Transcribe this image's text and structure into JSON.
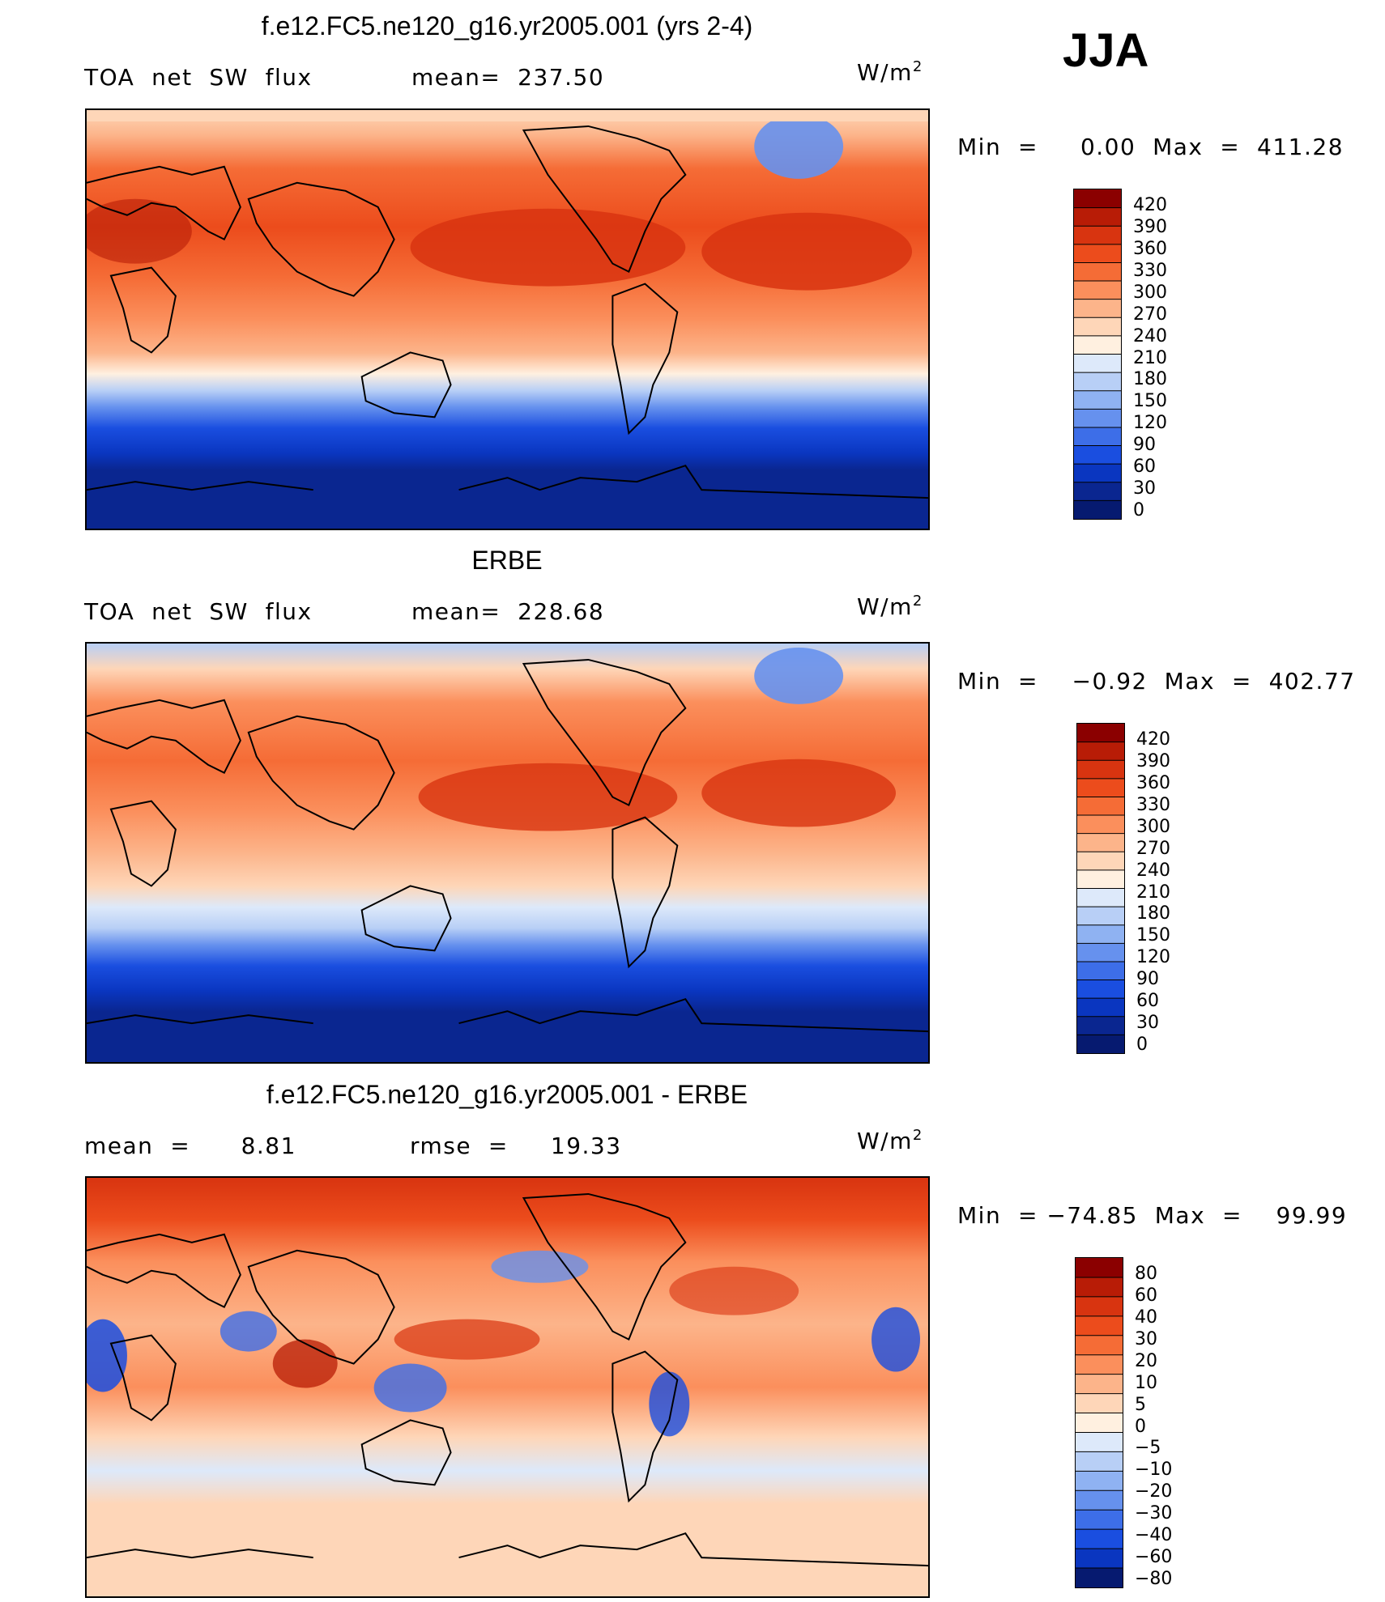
{
  "season": "JJA",
  "unit": {
    "base": "W/m",
    "exp": "2"
  },
  "panels": [
    {
      "title": "f.e12.FC5.ne120_g16.yr2005.001 (yrs 2-4)",
      "left_label": "TOA  net  SW  flux",
      "stat_label": "mean=  237.50",
      "minmax": "Min  =     0.00  Max  =  411.28",
      "kind": "absolute"
    },
    {
      "title": "ERBE",
      "left_label": "TOA  net  SW  flux",
      "stat_label": "mean=  228.68",
      "minmax": "Min  =    −0.92  Max  =  402.77",
      "kind": "absolute"
    },
    {
      "title": "f.e12.FC5.ne120_g16.yr2005.001 - ERBE",
      "left_label": "mean  =      8.81",
      "stat_label": "rmse  =     19.33",
      "minmax": "Min  = −74.85  Max  =    99.99",
      "kind": "difference"
    }
  ],
  "colorbars": {
    "absolute": {
      "labels": [
        "420",
        "390",
        "360",
        "330",
        "300",
        "270",
        "240",
        "210",
        "180",
        "150",
        "120",
        "90",
        "60",
        "30",
        "0"
      ],
      "colors": [
        "#8b0000",
        "#b81c06",
        "#d83410",
        "#ec4c1c",
        "#f56c36",
        "#fb8f5c",
        "#fcb48a",
        "#fed6b8",
        "#fff0e0",
        "#dde9fa",
        "#b8cff6",
        "#8fb2f2",
        "#6691ee",
        "#3d6ee8",
        "#1a4ee0",
        "#0a36c0",
        "#0a2690",
        "#061a70"
      ]
    },
    "difference": {
      "labels": [
        "80",
        "60",
        "40",
        "30",
        "20",
        "10",
        "5",
        "0",
        "−5",
        "−10",
        "−20",
        "−30",
        "−40",
        "−60",
        "−80"
      ],
      "colors": [
        "#8b0000",
        "#b81c06",
        "#d83410",
        "#ec4c1c",
        "#f56c36",
        "#fb8f5c",
        "#fcb48a",
        "#fed6b8",
        "#fff0e0",
        "#dde9fa",
        "#b8cff6",
        "#8fb2f2",
        "#6691ee",
        "#3d6ee8",
        "#1a4ee0",
        "#0a36c0",
        "#061a70"
      ]
    }
  }
}
